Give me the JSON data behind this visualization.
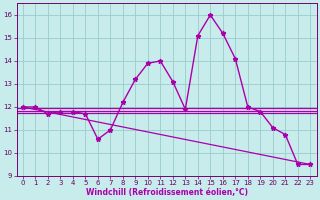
{
  "xlabel": "Windchill (Refroidissement éolien,°C)",
  "x_values": [
    0,
    1,
    2,
    3,
    4,
    5,
    6,
    7,
    8,
    9,
    10,
    11,
    12,
    13,
    14,
    15,
    16,
    17,
    18,
    19,
    20,
    21,
    22,
    23
  ],
  "main_line": [
    12.0,
    12.0,
    11.7,
    11.8,
    11.8,
    11.7,
    10.6,
    11.0,
    12.2,
    13.2,
    13.9,
    14.0,
    13.1,
    11.9,
    15.1,
    16.0,
    15.2,
    14.1,
    12.0,
    11.8,
    11.1,
    10.8,
    9.5,
    9.5
  ],
  "trend_line_x": [
    0,
    23
  ],
  "trend_line_y": [
    12.0,
    9.5
  ],
  "flat_line1_y": 11.82,
  "flat_line2_y": 11.95,
  "flat_line3_y": 11.75,
  "bg_color": "#c8ecec",
  "line_color": "#aa00aa",
  "grid_color": "#99cccc",
  "ylim": [
    9,
    16.5
  ],
  "xlim": [
    -0.5,
    23.5
  ],
  "yticks": [
    9,
    10,
    11,
    12,
    13,
    14,
    15,
    16
  ],
  "xticks": [
    0,
    1,
    2,
    3,
    4,
    5,
    6,
    7,
    8,
    9,
    10,
    11,
    12,
    13,
    14,
    15,
    16,
    17,
    18,
    19,
    20,
    21,
    22,
    23
  ]
}
